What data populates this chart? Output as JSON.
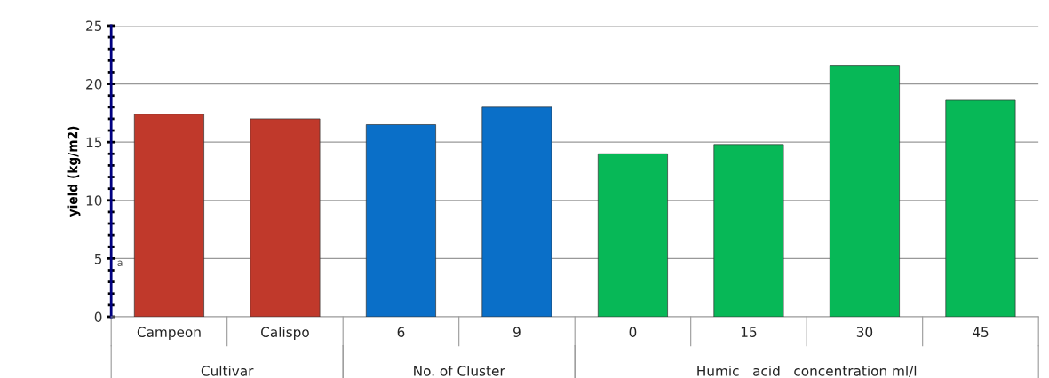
{
  "chart_data": {
    "type": "bar",
    "ylabel": "yield (kg/m2)",
    "categories": [
      "Campeon",
      "Calispo",
      "6",
      "9",
      "0",
      "15",
      "30",
      "45"
    ],
    "values": [
      17.4,
      17.0,
      16.5,
      18.0,
      14.0,
      14.8,
      21.6,
      18.6
    ],
    "colors": [
      "#c0392b",
      "#c0392b",
      "#0a6fc8",
      "#0a6fc8",
      "#07b857",
      "#07b857",
      "#07b857",
      "#07b857"
    ],
    "ylim": [
      0,
      25
    ],
    "yticks": [
      0,
      5,
      10,
      15,
      20,
      25
    ],
    "grid": "y",
    "annotations": [
      "Cultivar",
      "No. of Cluster",
      "Humic   acid   concentration ml/l",
      "a"
    ]
  }
}
